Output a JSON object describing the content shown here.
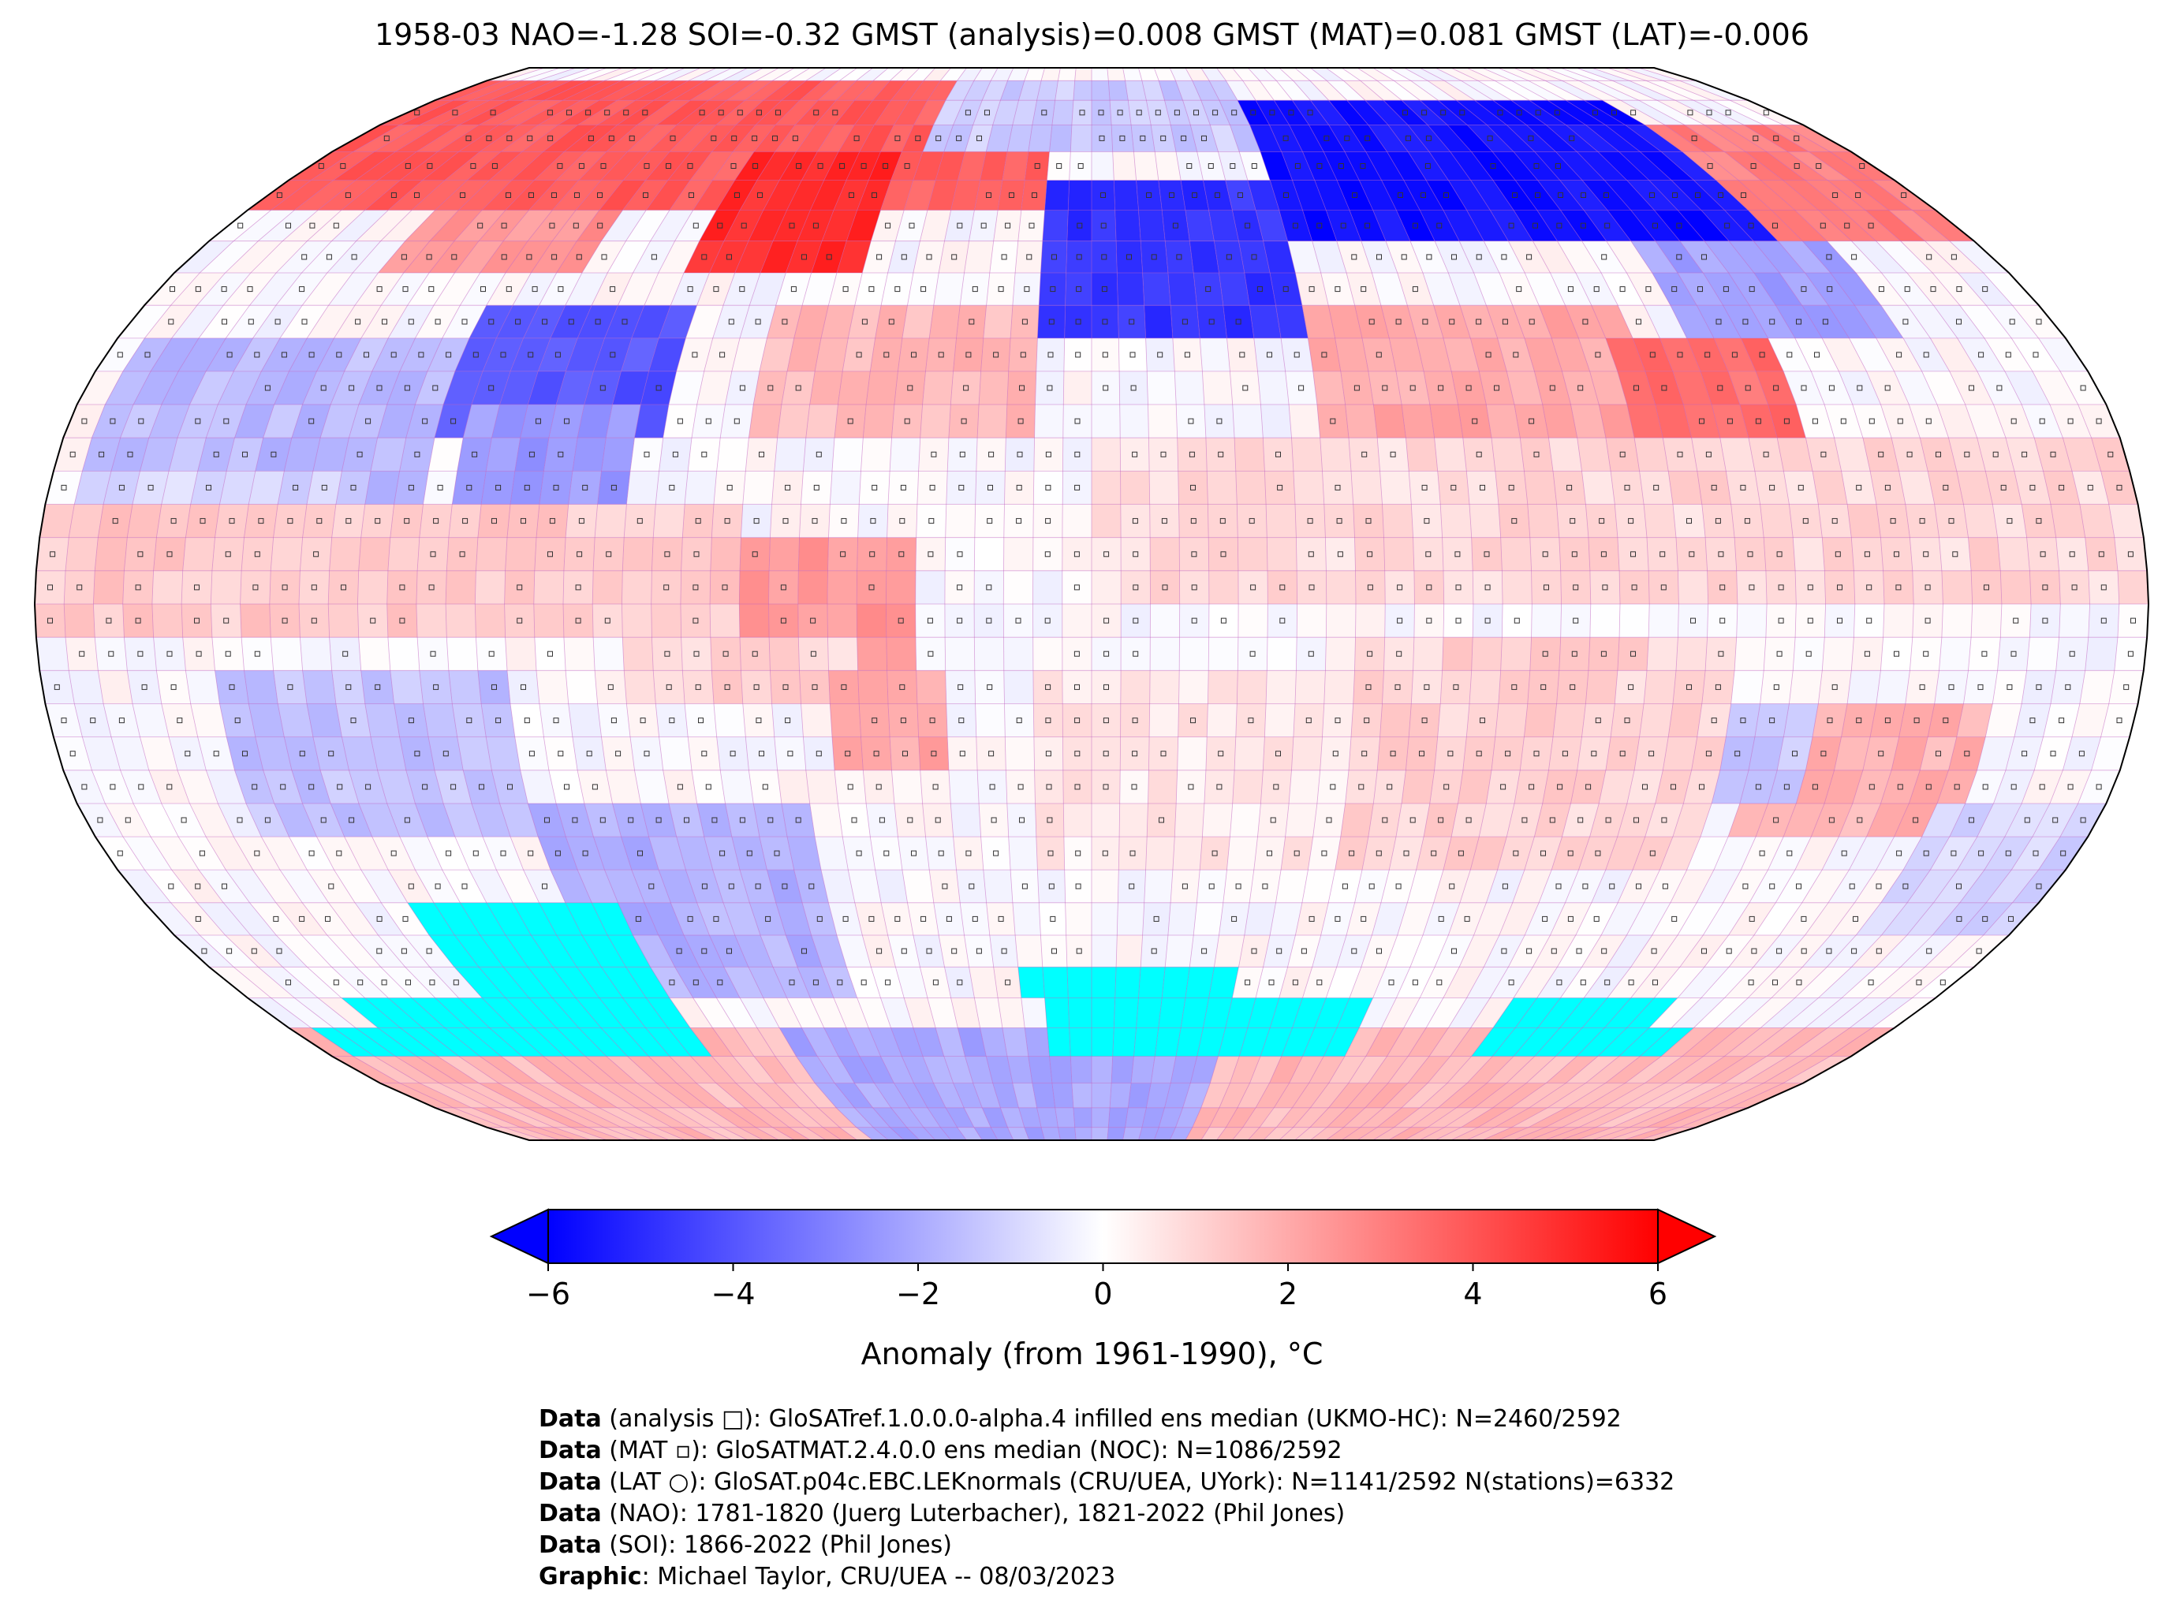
{
  "title": "1958-03 NAO=-1.28 SOI=-0.32 GMST (analysis)=0.008 GMST (MAT)=0.081 GMST (LAT)=-0.006",
  "colors": {
    "cold": "#0000ff",
    "neutral": "#ffffff",
    "warm": "#ff0000",
    "sea_ice": "#00ffff",
    "grid_lines": "#c060c0",
    "coastlines": "#000000"
  },
  "colorbar": {
    "min": -6,
    "max": 6,
    "extend": "both",
    "ticks": [
      "−6",
      "−4",
      "−2",
      "0",
      "2",
      "4",
      "6"
    ],
    "label": "Anomaly (from 1961-1990), °C"
  },
  "credits": [
    {
      "bold": "Data",
      "text": " (analysis □): GloSATref.1.0.0.0-alpha.4 infilled ens median (UKMO-HC): N=2460/2592"
    },
    {
      "bold": "Data",
      "text": " (MAT ▫): GloSATMAT.2.4.0.0 ens median (NOC): N=1086/2592"
    },
    {
      "bold": "Data",
      "text": " (LAT ○): GloSAT.p04c.EBC.LEKnormals (CRU/UEA, UYork): N=1141/2592 N(stations)=6332"
    },
    {
      "bold": "Data",
      "text": " (NAO): 1781-1820 (Juerg Luterbacher), 1821-2022 (Phil Jones)"
    },
    {
      "bold": "Data",
      "text": " (SOI): 1866-2022 (Phil Jones)"
    },
    {
      "bold": "Graphic",
      "text": ": Michael Taylor, CRU/UEA -- 08/03/2023"
    }
  ],
  "map": {
    "projection": "Robinson",
    "grid_resolution_deg": 5,
    "anomaly_regions": [
      {
        "lon": [
          -180,
          -10
        ],
        "lat": [
          60,
          85
        ],
        "value": 3.8
      },
      {
        "lon": [
          -80,
          -45
        ],
        "lat": [
          48,
          68
        ],
        "value": 5.0
      },
      {
        "lon": [
          -140,
          -100
        ],
        "lat": [
          48,
          62
        ],
        "value": 2.5
      },
      {
        "lon": [
          -115,
          -75
        ],
        "lat": [
          25,
          45
        ],
        "value": -4.0
      },
      {
        "lon": [
          -110,
          -80
        ],
        "lat": [
          15,
          28
        ],
        "value": -2.4
      },
      {
        "lon": [
          -175,
          -115
        ],
        "lat": [
          15,
          40
        ],
        "value": -1.6
      },
      {
        "lon": [
          -175,
          -130
        ],
        "lat": [
          5,
          20
        ],
        "value": -1.0
      },
      {
        "lon": [
          -60,
          -10
        ],
        "lat": [
          25,
          45
        ],
        "value": 1.6
      },
      {
        "lon": [
          -180,
          -60
        ],
        "lat": [
          -5,
          15
        ],
        "value": 1.2
      },
      {
        "lon": [
          -60,
          -30
        ],
        "lat": [
          -10,
          10
        ],
        "value": 2.4
      },
      {
        "lon": [
          -80,
          -40
        ],
        "lat": [
          -15,
          -5
        ],
        "value": 1.0
      },
      {
        "lon": [
          -45,
          -25
        ],
        "lat": [
          -25,
          -10
        ],
        "value": 2.0
      },
      {
        "lon": [
          -100,
          -50
        ],
        "lat": [
          -60,
          -30
        ],
        "value": -1.8
      },
      {
        "lon": [
          -150,
          -100
        ],
        "lat": [
          -35,
          -10
        ],
        "value": -1.4
      },
      {
        "lon": [
          -10,
          40
        ],
        "lat": [
          40,
          65
        ],
        "value": -4.8
      },
      {
        "lon": [
          40,
          140
        ],
        "lat": [
          55,
          82
        ],
        "value": -5.6
      },
      {
        "lon": [
          -40,
          40
        ],
        "lat": [
          70,
          85
        ],
        "value": -1.2
      },
      {
        "lon": [
          140,
          180
        ],
        "lat": [
          55,
          75
        ],
        "value": 3.0
      },
      {
        "lon": [
          40,
          100
        ],
        "lat": [
          25,
          45
        ],
        "value": 2.0
      },
      {
        "lon": [
          95,
          125
        ],
        "lat": [
          18,
          38
        ],
        "value": 3.4
      },
      {
        "lon": [
          110,
          150
        ],
        "lat": [
          38,
          55
        ],
        "value": -2.2
      },
      {
        "lon": [
          0,
          60
        ],
        "lat": [
          0,
          25
        ],
        "value": 0.8
      },
      {
        "lon": [
          60,
          180
        ],
        "lat": [
          0,
          25
        ],
        "value": 0.9
      },
      {
        "lon": [
          -10,
          45
        ],
        "lat": [
          -40,
          -10
        ],
        "value": 0.5
      },
      {
        "lon": [
          45,
          110
        ],
        "lat": [
          -40,
          -5
        ],
        "value": 1.0
      },
      {
        "lon": [
          115,
          155
        ],
        "lat": [
          -35,
          -15
        ],
        "value": 1.8
      },
      {
        "lon": [
          110,
          125
        ],
        "lat": [
          -30,
          -15
        ],
        "value": -1.2
      },
      {
        "lon": [
          150,
          180
        ],
        "lat": [
          -50,
          -30
        ],
        "value": -1.0
      },
      {
        "lon": [
          -180,
          180
        ],
        "lat": [
          -90,
          -65
        ],
        "value": 1.6
      },
      {
        "lon": [
          -70,
          30
        ],
        "lat": [
          -90,
          -65
        ],
        "value": -2.0
      }
    ],
    "sea_ice_regions": [
      {
        "lon": [
          -130,
          -90
        ],
        "lat": [
          -70,
          -45
        ]
      },
      {
        "lon": [
          -160,
          -100
        ],
        "lat": [
          -70,
          -60
        ]
      },
      {
        "lon": [
          -175,
          -130
        ],
        "lat": [
          -70,
          -65
        ]
      },
      {
        "lon": [
          -10,
          30
        ],
        "lat": [
          -70,
          -55
        ]
      },
      {
        "lon": [
          -15,
          -10
        ],
        "lat": [
          -60,
          -55
        ]
      },
      {
        "lon": [
          30,
          60
        ],
        "lat": [
          -70,
          -60
        ]
      },
      {
        "lon": [
          90,
          125
        ],
        "lat": [
          -70,
          -60
        ]
      },
      {
        "lon": [
          125,
          135
        ],
        "lat": [
          -70,
          -65
        ]
      }
    ]
  }
}
